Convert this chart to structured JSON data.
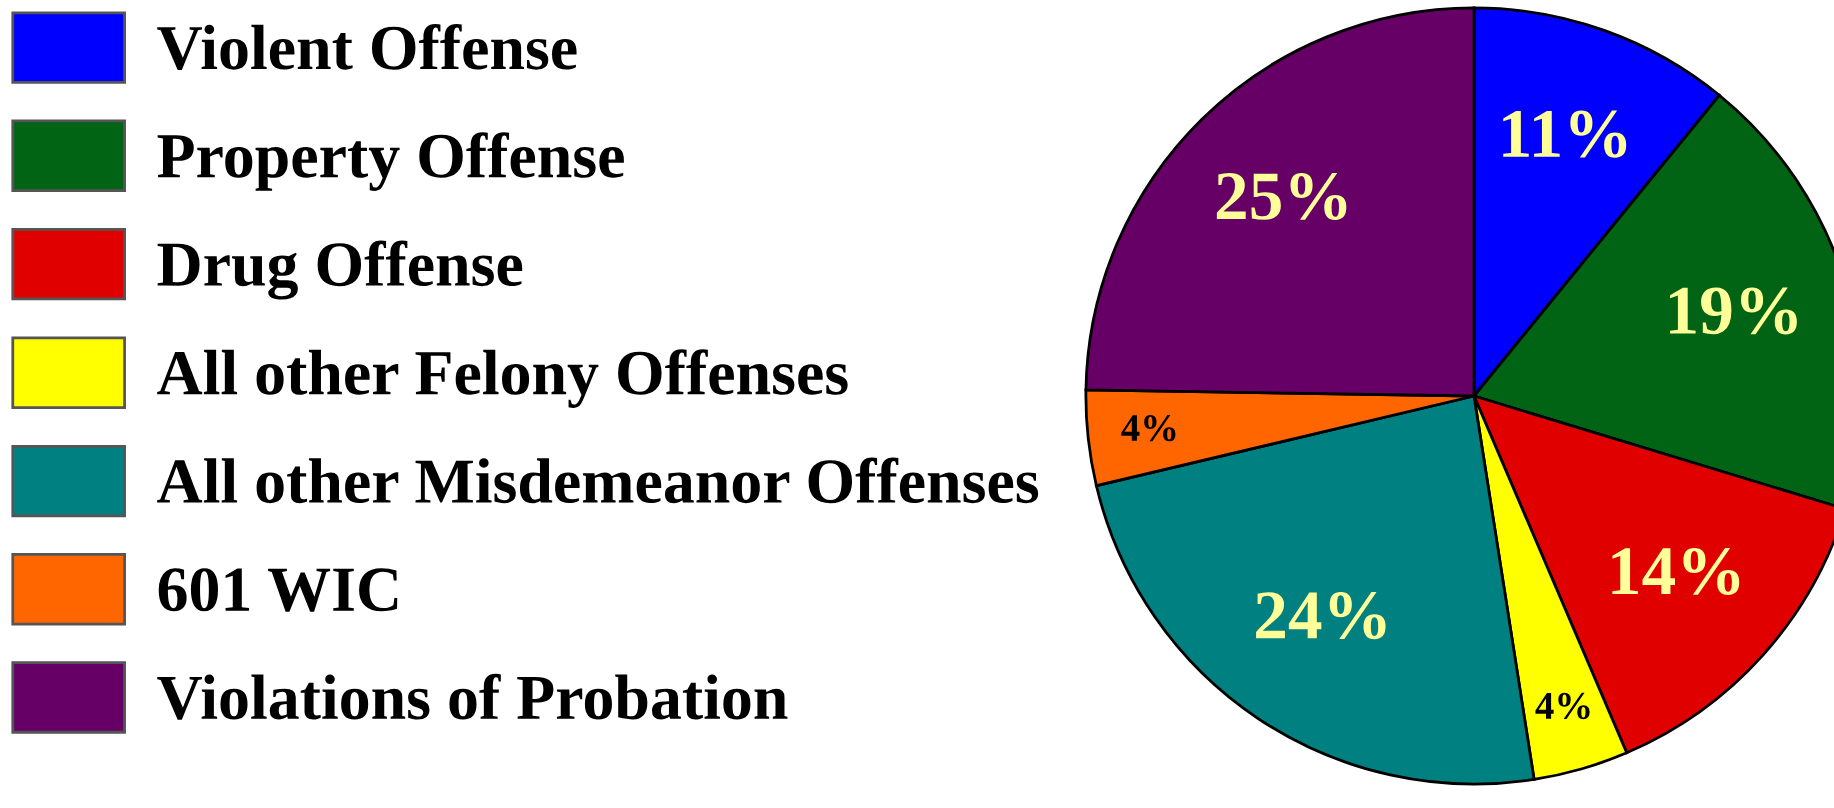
{
  "chart_data": {
    "type": "pie",
    "categories": [
      "Violent Offense",
      "Property Offense",
      "Drug Offense",
      "All other Felony Offenses",
      "All other Misdemeanor Offenses",
      "601 WIC",
      "Violations of Probation"
    ],
    "values": [
      11,
      19,
      14,
      4,
      24,
      4,
      25
    ],
    "colors": [
      "#0000ff",
      "#006414",
      "#e00000",
      "#ffff00",
      "#008080",
      "#ff6600",
      "#660066"
    ],
    "value_labels": [
      "11%",
      "19%",
      "14%",
      "4%",
      "24%",
      "4%",
      "25%"
    ],
    "legend": "left"
  }
}
